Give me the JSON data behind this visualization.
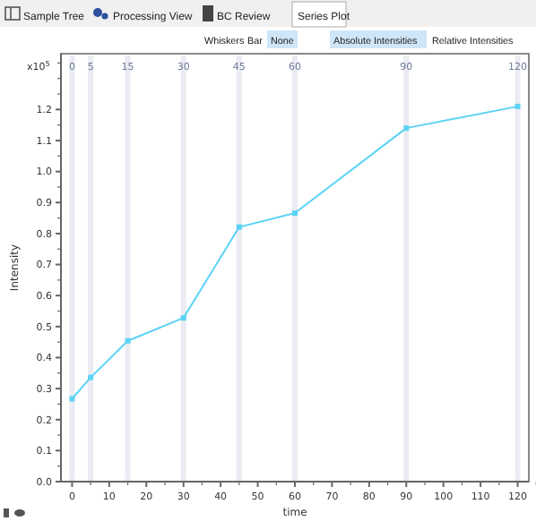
{
  "chart_data": {
    "type": "line",
    "xlabel": "time",
    "ylabel": "Intensity",
    "annotations": [
      "Sample Tree",
      "Processing View",
      "BC Review",
      "Series Plot",
      "Whiskers",
      "Bar",
      "None",
      "Absolute Intensities",
      "Relative Intensities",
      "x10$^{5}$"
    ],
    "x": [
      0,
      5,
      15,
      30,
      45,
      60,
      90,
      120
    ],
    "series": [
      {
        "color": "#5bd3f5",
        "values": [
          0.267,
          0.336,
          0.454,
          0.528,
          0.821,
          0.866,
          1.14,
          1.21
        ]
      }
    ],
    "xlim": [
      -3,
      123
    ],
    "xticks": [
      0,
      10,
      20,
      30,
      40,
      50,
      60,
      70,
      80,
      90,
      100,
      110,
      120
    ],
    "x2lim": [
      -3,
      123
    ],
    "x2ticks": [
      0,
      5,
      15,
      30,
      45,
      60,
      90,
      120
    ],
    "ylim": [
      0,
      1.38
    ],
    "yticks": [
      {
        "value": 0,
        "label": "0.0"
      },
      {
        "value": 0.1,
        "label": "0.1"
      },
      {
        "value": 0.2,
        "label": "0.2"
      },
      {
        "value": 0.3,
        "label": "0.3"
      },
      {
        "value": 0.4,
        "label": "0.4"
      },
      {
        "value": 0.5,
        "label": "0.5"
      },
      {
        "value": 0.6,
        "label": "0.6"
      },
      {
        "value": 0.7,
        "label": "0.7"
      },
      {
        "value": 0.8,
        "label": "0.8"
      },
      {
        "value": 0.9,
        "label": "0.9"
      },
      {
        "value": 1,
        "label": "1.0"
      },
      {
        "value": 1.1,
        "label": "1.1"
      },
      {
        "value": 1.2,
        "label": "1.2"
      }
    ],
    "ref_lines": [
      {
        "axis": "x",
        "value": 0,
        "color": "#ebebf2"
      },
      {
        "axis": "x",
        "value": 5,
        "color": "#ebebf2"
      },
      {
        "axis": "x",
        "value": 15,
        "color": "#ebebf2"
      },
      {
        "axis": "x",
        "value": 30,
        "color": "#ebebf2"
      },
      {
        "axis": "x",
        "value": 45,
        "color": "#ebebf2"
      },
      {
        "axis": "x",
        "value": 60,
        "color": "#ebebf2"
      },
      {
        "axis": "x",
        "value": 90,
        "color": "#ebebf2"
      },
      {
        "axis": "x",
        "value": 120,
        "color": "#ebebf2"
      }
    ],
    "marker": "square",
    "line_style": "solid",
    "grid": false
  }
}
